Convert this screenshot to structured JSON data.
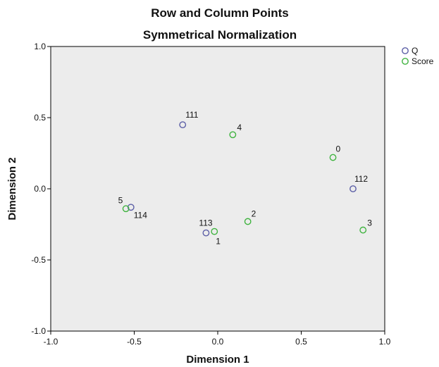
{
  "chart_data": {
    "type": "scatter",
    "title": "Row and Column Points",
    "subtitle": "Symmetrical Normalization",
    "xlabel": "Dimension 1",
    "ylabel": "Dimension 2",
    "xlim": [
      -1.0,
      1.0
    ],
    "ylim": [
      -1.0,
      1.0
    ],
    "x_ticks": [
      -1.0,
      -0.5,
      0.0,
      0.5,
      1.0
    ],
    "x_tick_labels": [
      "-1.0",
      "-0.5",
      "0.0",
      "0.5",
      "1.0"
    ],
    "y_ticks": [
      -1.0,
      -0.5,
      0.0,
      0.5,
      1.0
    ],
    "y_tick_labels": [
      "-1.0",
      "-0.5",
      "0.0",
      "0.5",
      "1.0"
    ],
    "grid": false,
    "legend_position": "top-right",
    "plot_background": "#ececec",
    "series": [
      {
        "name": "Q",
        "color": "#5b5ea6",
        "marker": "open-circle",
        "points": [
          {
            "label": "111",
            "x": -0.21,
            "y": 0.45
          },
          {
            "label": "112",
            "x": 0.81,
            "y": 0.0
          },
          {
            "label": "113",
            "x": -0.07,
            "y": -0.31
          },
          {
            "label": "114",
            "x": -0.52,
            "y": -0.13
          }
        ]
      },
      {
        "name": "Score",
        "color": "#3fb33f",
        "marker": "open-circle",
        "points": [
          {
            "label": "0",
            "x": 0.69,
            "y": 0.22
          },
          {
            "label": "1",
            "x": -0.02,
            "y": -0.3
          },
          {
            "label": "2",
            "x": 0.18,
            "y": -0.23
          },
          {
            "label": "3",
            "x": 0.87,
            "y": -0.29
          },
          {
            "label": "4",
            "x": 0.09,
            "y": 0.38
          },
          {
            "label": "5",
            "x": -0.55,
            "y": -0.14
          }
        ]
      }
    ]
  }
}
